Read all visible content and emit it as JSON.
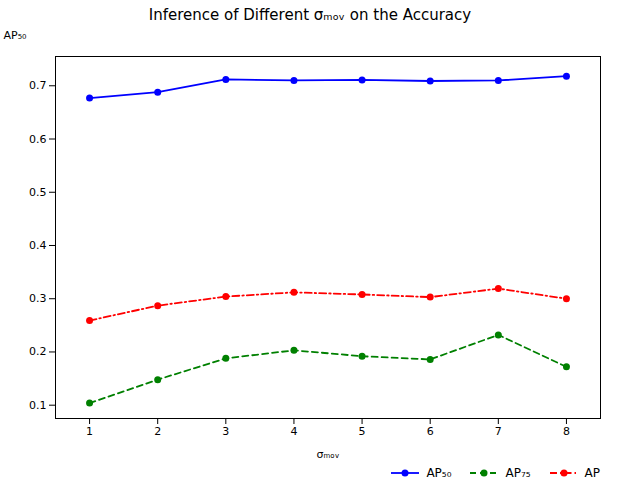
{
  "chart_data": {
    "type": "line",
    "title": "Inference of Different σₘₒᵥ on the Accuracy",
    "xlabel": "σₘₒᵥ",
    "ylabel": "AP₅₀",
    "x": [
      1,
      2,
      3,
      4,
      5,
      6,
      7,
      8
    ],
    "series": [
      {
        "name": "AP₅₀",
        "color": "#0000ff",
        "line_style": "solid",
        "marker": "circle",
        "values": [
          0.677,
          0.688,
          0.712,
          0.71,
          0.711,
          0.709,
          0.71,
          0.718
        ]
      },
      {
        "name": "AP₇₅",
        "color": "#008000",
        "line_style": "dashed",
        "marker": "circle",
        "values": [
          0.104,
          0.148,
          0.188,
          0.203,
          0.192,
          0.186,
          0.232,
          0.172
        ]
      },
      {
        "name": "AP",
        "color": "#ff0000",
        "line_style": "dashdot",
        "marker": "circle",
        "values": [
          0.259,
          0.287,
          0.304,
          0.312,
          0.308,
          0.303,
          0.319,
          0.3
        ]
      }
    ],
    "xlim": [
      0.5,
      8.5
    ],
    "xticks": [
      1,
      2,
      3,
      4,
      5,
      6,
      7,
      8
    ],
    "ylim": [
      0.075,
      0.755
    ],
    "yticks": [
      0.1,
      0.2,
      0.3,
      0.4,
      0.5,
      0.6,
      0.7
    ],
    "grid": false,
    "legend": "lower right"
  }
}
